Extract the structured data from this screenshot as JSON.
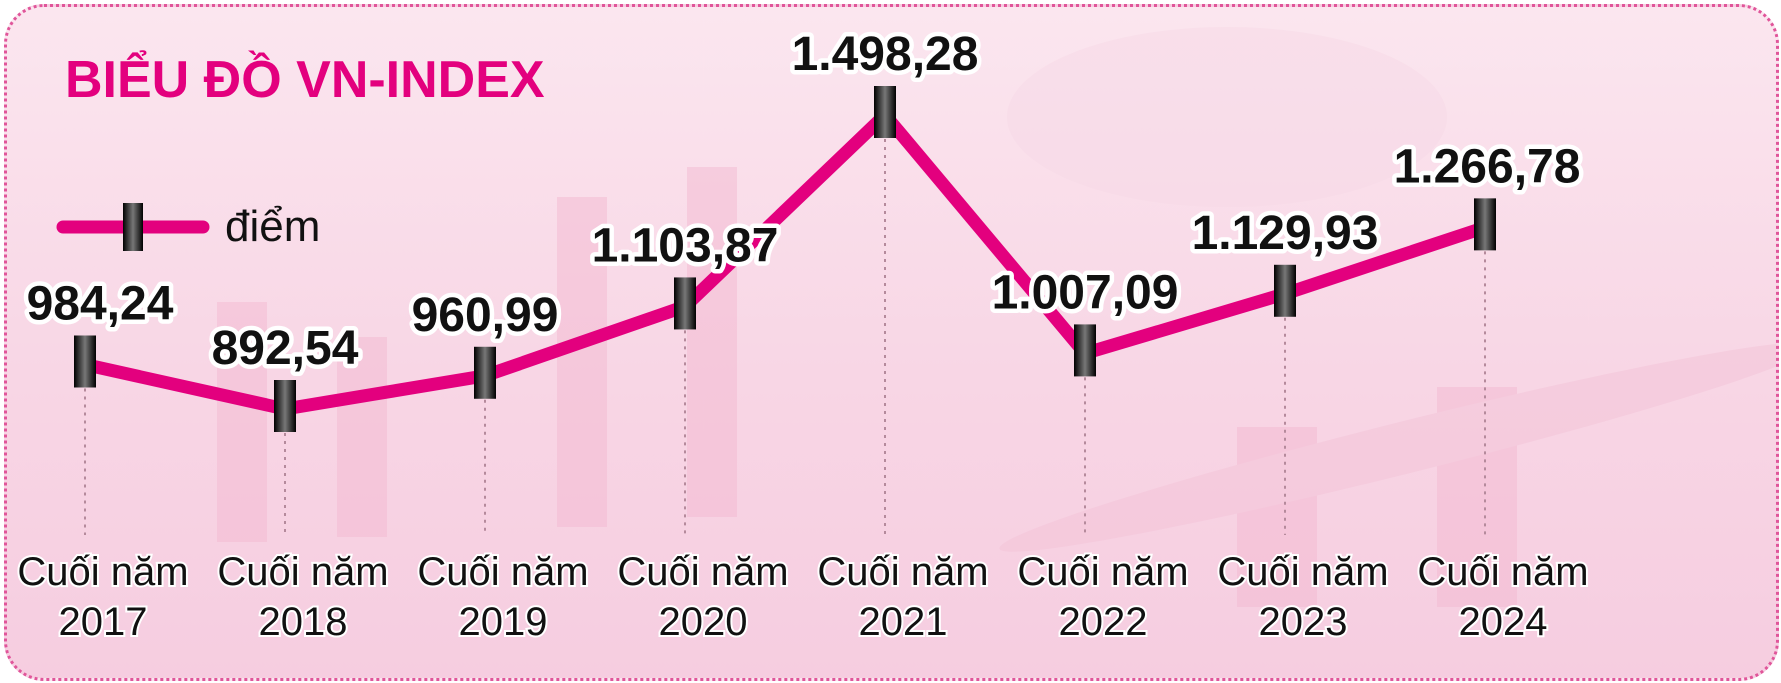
{
  "chart_data": {
    "type": "line",
    "title": "BIỂU ĐỒ VN-INDEX",
    "categories": [
      [
        "Cuối năm",
        "2017"
      ],
      [
        "Cuối năm",
        "2018"
      ],
      [
        "Cuối năm",
        "2019"
      ],
      [
        "Cuối năm",
        "2020"
      ],
      [
        "Cuối năm",
        "2021"
      ],
      [
        "Cuối năm",
        "2022"
      ],
      [
        "Cuối năm",
        "2023"
      ],
      [
        "Cuối năm",
        "2024"
      ]
    ],
    "series": [
      {
        "name": "điểm",
        "color": "#e3007e",
        "values": [
          984.24,
          892.54,
          960.99,
          1103.87,
          1498.28,
          1007.09,
          1129.93,
          1266.78
        ],
        "labels": [
          "984,24",
          "892,54",
          "960,99",
          "1.103,87",
          "1.498,28",
          "1.007,09",
          "1.129,93",
          "1.266,78"
        ]
      }
    ],
    "legend_position": "top-left",
    "grid": false,
    "marker_color": "#111111",
    "guide_line_color": "#b58a9c"
  }
}
